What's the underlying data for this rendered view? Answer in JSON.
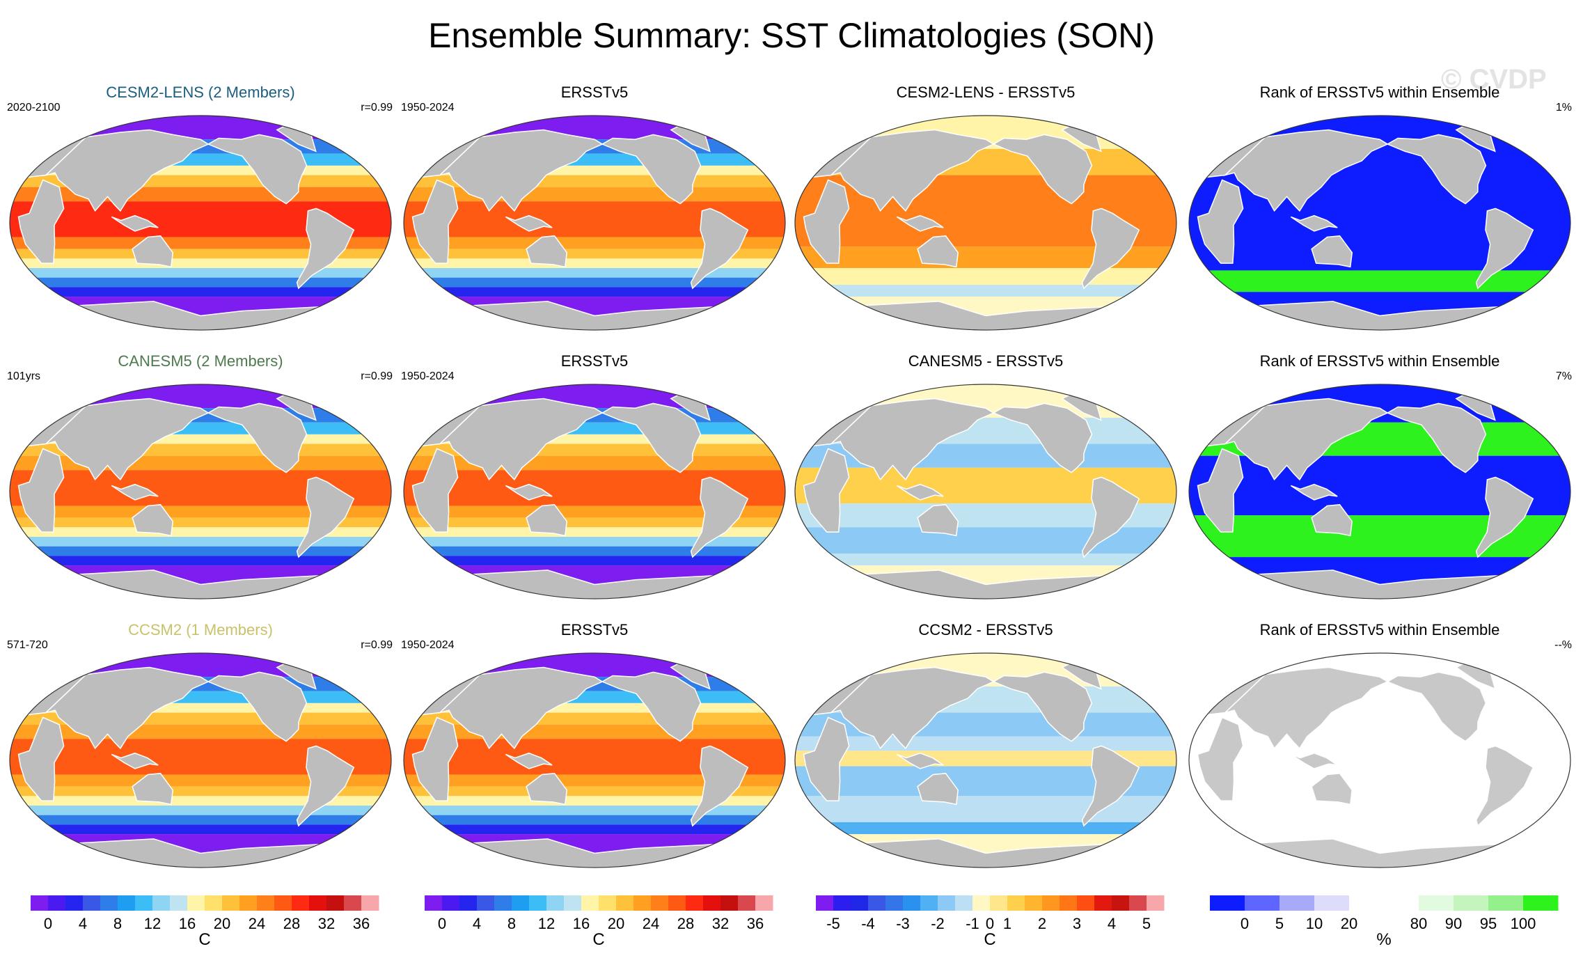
{
  "header": {
    "title": "Ensemble Summary: SST Climatologies (SON)",
    "watermark": "© CVDP"
  },
  "rows": [
    {
      "model": {
        "title": "CESM2-LENS (2 Members)",
        "title_color": "#1b5e7f",
        "period": "2020-2100",
        "corr": "r=0.99",
        "style": "warm"
      },
      "obs": {
        "title": "ERSSTv5",
        "period": "1950-2024",
        "style": "obs"
      },
      "diff": {
        "title": "CESM2-LENS - ERSSTv5",
        "style": "diff_warm"
      },
      "rank": {
        "title": "Rank of ERSSTv5 within Ensemble",
        "pct": "1%",
        "style": "rank_blue"
      }
    },
    {
      "model": {
        "title": "CANESM5 (2 Members)",
        "title_color": "#4e7a4e",
        "period": "101yrs",
        "corr": "r=0.99",
        "style": "mid"
      },
      "obs": {
        "title": "ERSSTv5",
        "period": "1950-2024",
        "style": "obs"
      },
      "diff": {
        "title": "CANESM5 - ERSSTv5",
        "style": "diff_mixed"
      },
      "rank": {
        "title": "Rank of ERSSTv5 within Ensemble",
        "pct": "7%",
        "style": "rank_mixed"
      }
    },
    {
      "model": {
        "title": "CCSM2 (1 Members)",
        "title_color": "#c9c26a",
        "period": "571-720",
        "corr": "r=0.99",
        "style": "mid"
      },
      "obs": {
        "title": "ERSSTv5",
        "period": "1950-2024",
        "style": "obs"
      },
      "diff": {
        "title": "CCSM2 - ERSSTv5",
        "style": "diff_cool"
      },
      "rank": {
        "title": "Rank of ERSSTv5 within Ensemble",
        "pct": "--%",
        "style": "rank_empty"
      }
    }
  ],
  "colorbars": [
    {
      "colors": [
        "#7d1df0",
        "#4b1af0",
        "#2525f0",
        "#3a58e6",
        "#2f7de8",
        "#1e9ef0",
        "#3cbdf5",
        "#8fd4f2",
        "#bfe3f0",
        "#fff4a8",
        "#ffe06a",
        "#ffc13a",
        "#ffa021",
        "#ff7f1a",
        "#ff5a14",
        "#ff2a12",
        "#e3100e",
        "#c4100f",
        "#d8484c",
        "#f7a7a9"
      ],
      "ticks": [
        "0",
        "4",
        "8",
        "12",
        "16",
        "20",
        "24",
        "28",
        "32",
        "36"
      ],
      "unit": "C"
    },
    {
      "colors": [
        "#7d1df0",
        "#4b1af0",
        "#2525f0",
        "#3a58e6",
        "#2f7de8",
        "#1e9ef0",
        "#3cbdf5",
        "#8fd4f2",
        "#bfe3f0",
        "#fff4a8",
        "#ffe06a",
        "#ffc13a",
        "#ffa021",
        "#ff7f1a",
        "#ff5a14",
        "#ff2a12",
        "#e3100e",
        "#c4100f",
        "#d8484c",
        "#f7a7a9"
      ],
      "ticks": [
        "0",
        "4",
        "8",
        "12",
        "16",
        "20",
        "24",
        "28",
        "32",
        "36"
      ],
      "unit": "C"
    },
    {
      "colors": [
        "#7d1df0",
        "#2d1ef0",
        "#2027e6",
        "#3a58e6",
        "#3575ea",
        "#2a92ee",
        "#4fb0f4",
        "#8cc9f4",
        "#bcdff3",
        "#fff8c4",
        "#ffe68a",
        "#ffd04c",
        "#ffb52d",
        "#ff961f",
        "#ff7617",
        "#ff4e12",
        "#e3180e",
        "#c8140f",
        "#d8484c",
        "#f7a7a9"
      ],
      "ticks": [
        "-5",
        "-4",
        "-3",
        "-2",
        "-1",
        "0",
        "1",
        "2",
        "3",
        "4",
        "5"
      ],
      "unit": "C"
    },
    {
      "colors": [
        "#0d1dff",
        "#5f66ff",
        "#a9aaf7",
        "#dddcfb",
        "#ffffff",
        "#ffffff",
        "#e2fbe0",
        "#c3f5bd",
        "#95f08b",
        "#2df21d"
      ],
      "ticks": [
        "0",
        "5",
        "10",
        "20",
        "80",
        "90",
        "95",
        "100"
      ],
      "unit": "%"
    }
  ]
}
